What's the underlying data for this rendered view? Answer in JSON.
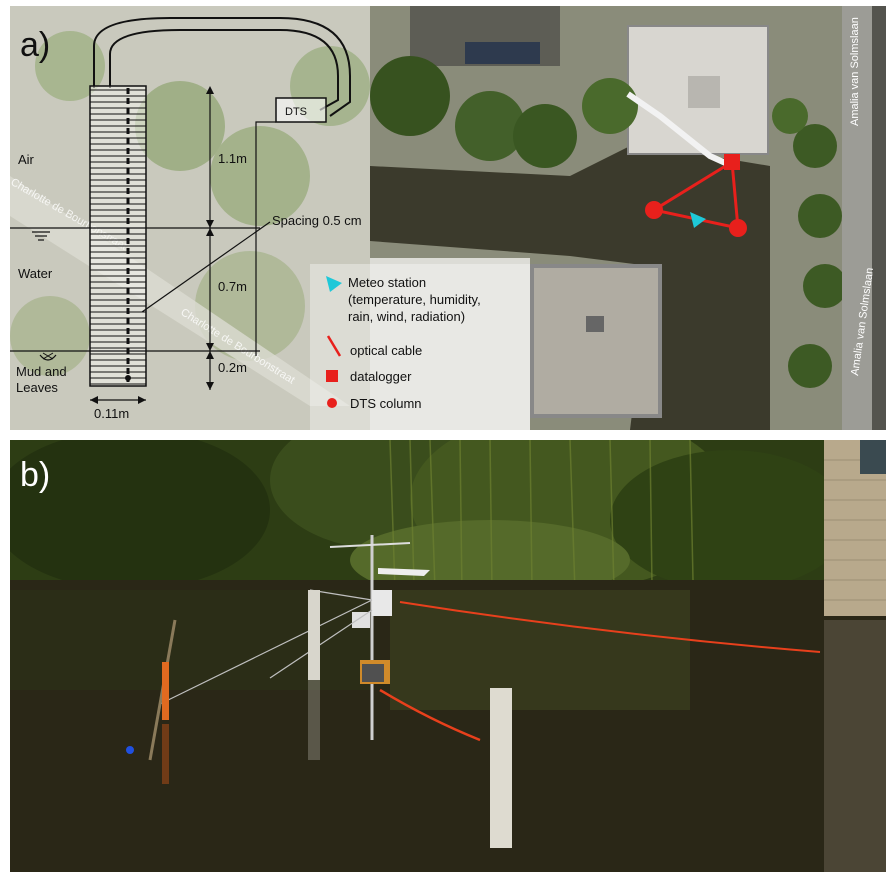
{
  "panel_a": {
    "label": "a)",
    "column": {
      "logger_label": "DTS",
      "zones": [
        "Air",
        "Water",
        "Mud and Leaves"
      ],
      "heights": [
        "1.1m",
        "0.7m",
        "0.2m"
      ],
      "width": "0.11m",
      "spacing_note": "Spacing 0.5 cm"
    },
    "map_streets": [
      "Amalia van Solmslaan",
      "Amalia van Solmslaan",
      "Charlotte de Bourbonstraat",
      "Charlotte de Bourbonstraat"
    ],
    "legend": [
      {
        "key": "meteo",
        "label": "Meteo station",
        "sub": [
          "(temperature, humidity,",
          "rain, wind, radiation)"
        ]
      },
      {
        "key": "cable",
        "label": "optical cable"
      },
      {
        "key": "logger",
        "label": "datalogger"
      },
      {
        "key": "column",
        "label": "DTS column"
      }
    ],
    "colors": {
      "cable": "#e8201c",
      "meteo": "#1ec8d8",
      "water": "#3b3a2c",
      "grass": "#5d7a2f"
    }
  },
  "panel_b": {
    "label": "b)",
    "colors": {
      "water": "#2a2717",
      "foliage": "#2d3d14",
      "brick": "#b8a98c",
      "cable": "#e8401c"
    }
  }
}
